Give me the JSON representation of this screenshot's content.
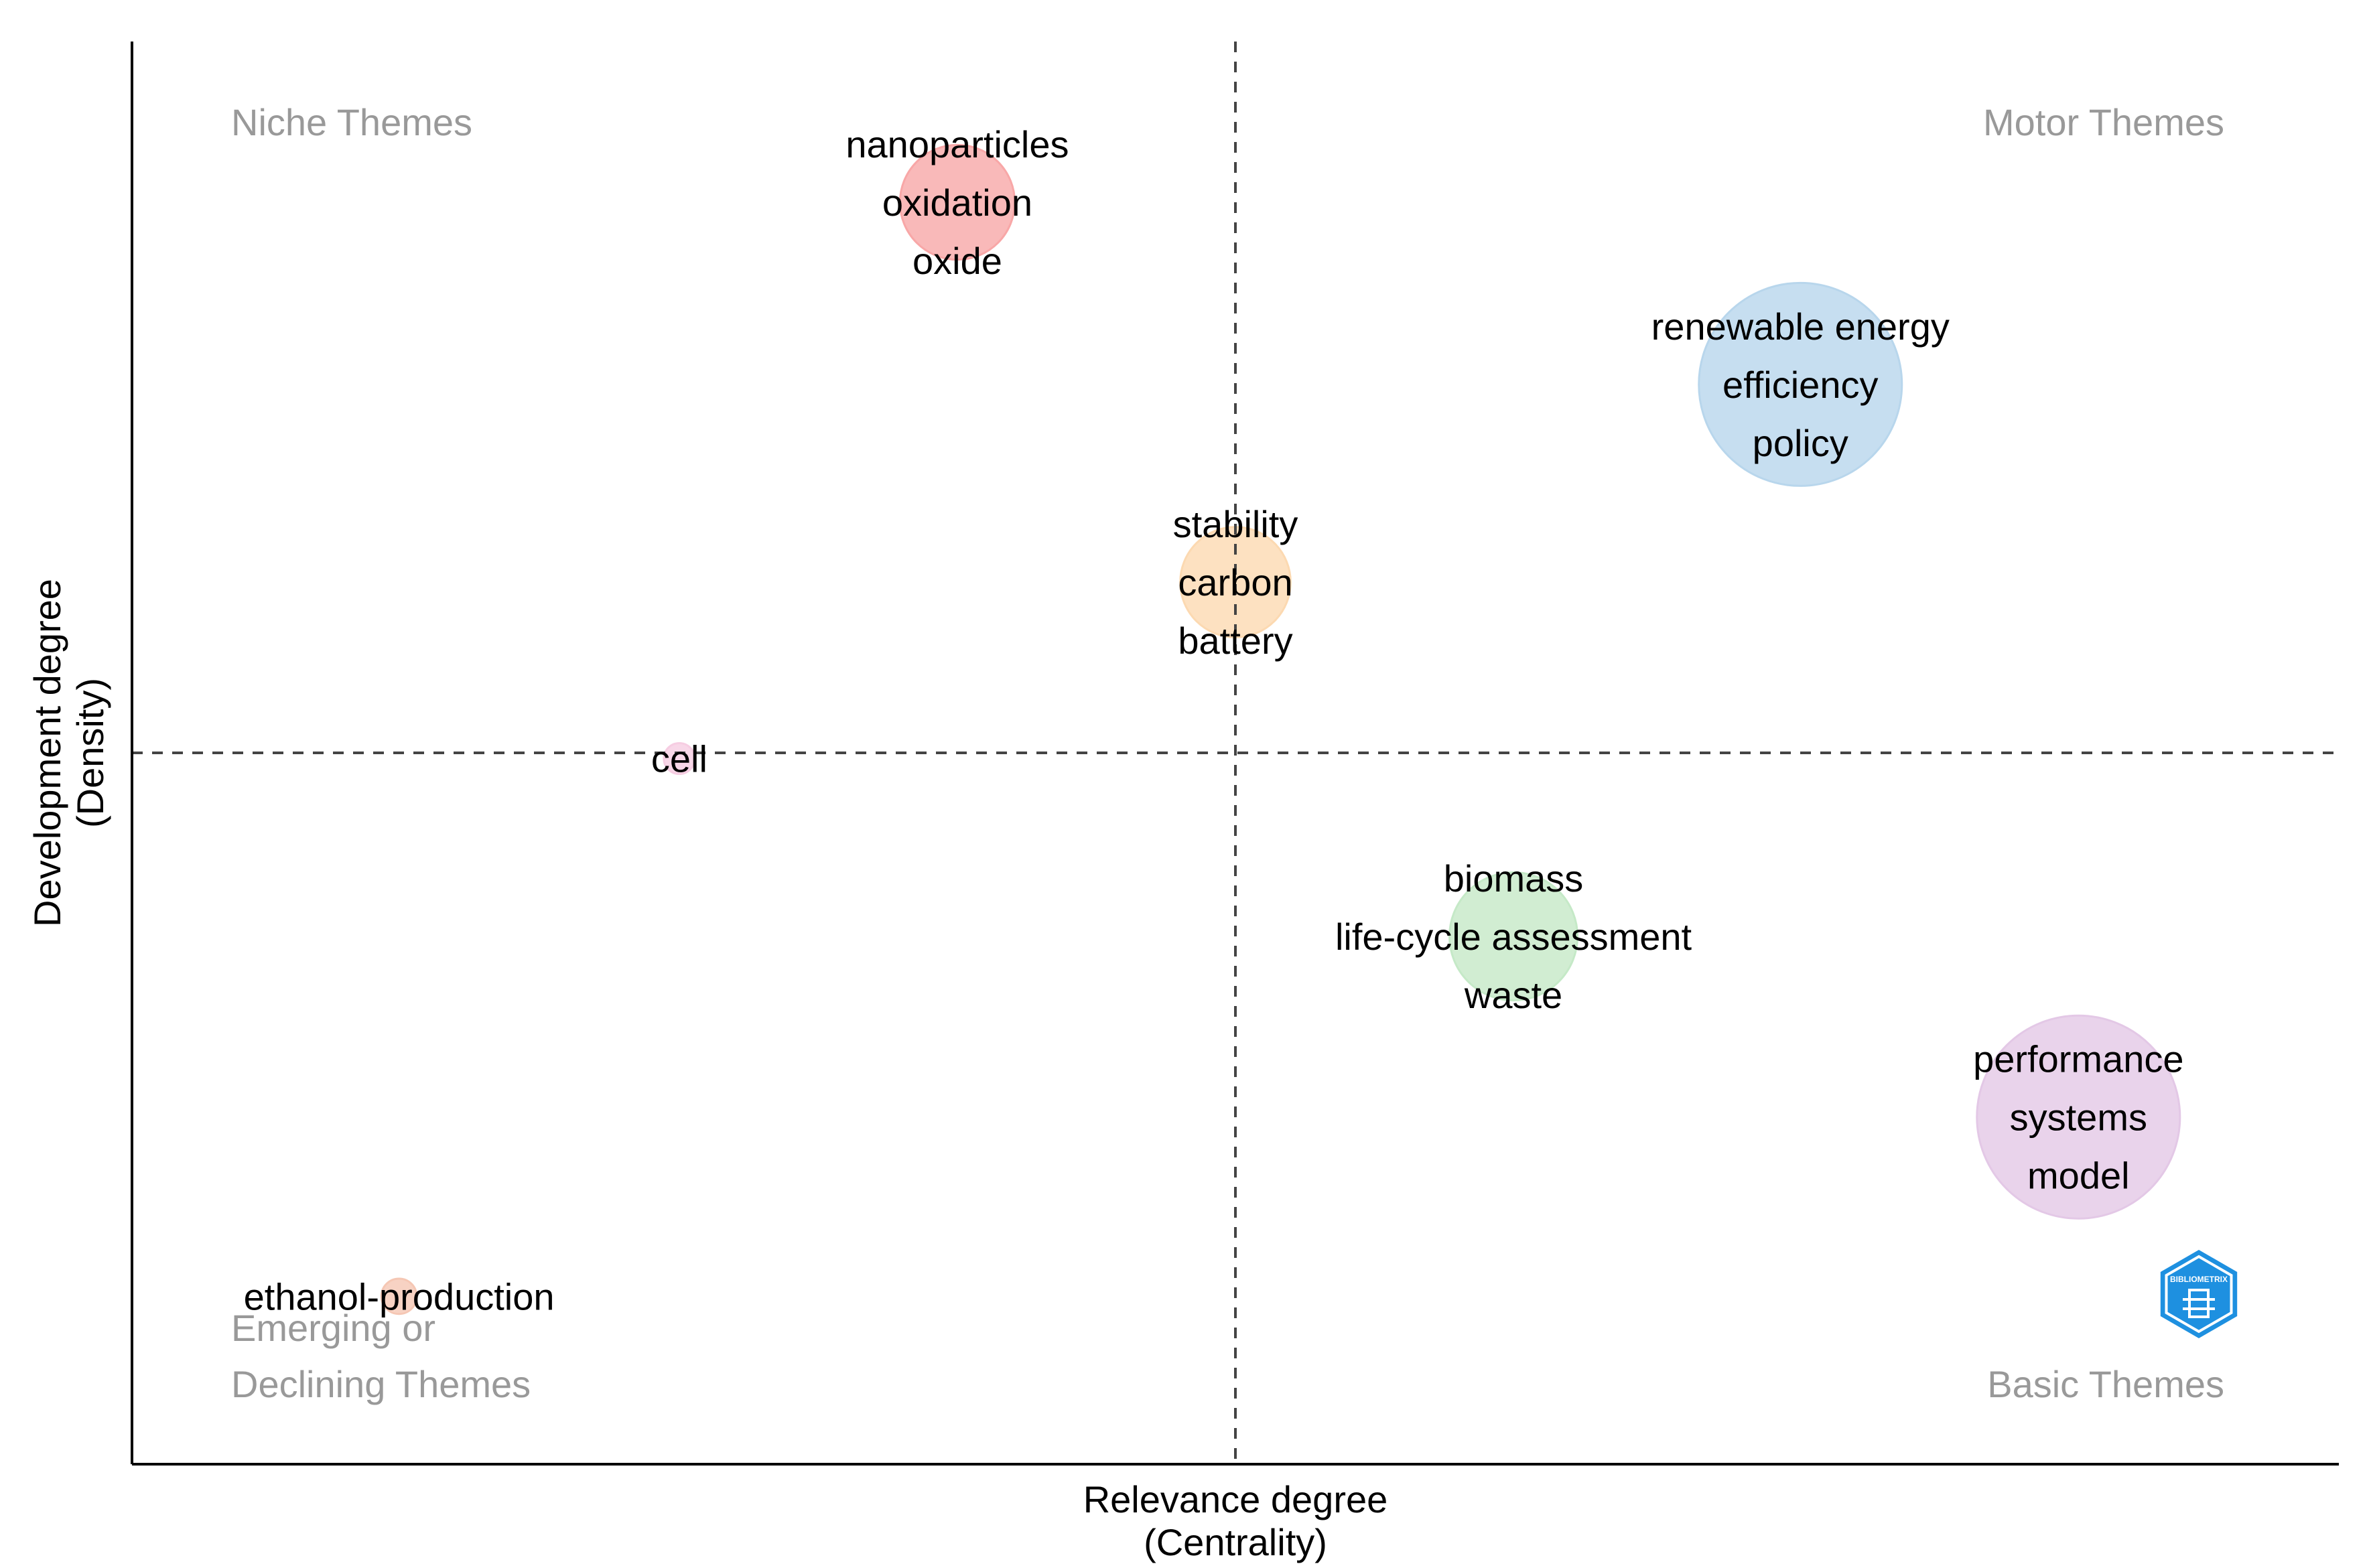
{
  "chart_data": {
    "type": "scatter",
    "subtype": "bubble",
    "xlabel": [
      "Relevance degree",
      "(Centrality)"
    ],
    "ylabel": [
      "Development degree",
      "(Density)"
    ],
    "xlim": [
      0,
      100
    ],
    "ylim": [
      0,
      100
    ],
    "x_center": 50,
    "y_center": 50,
    "grid": false,
    "quadrants": {
      "top_left": [
        "Niche Themes"
      ],
      "top_right": [
        "Motor Themes"
      ],
      "bottom_left": [
        "Emerging or",
        "Declining Themes"
      ],
      "bottom_right": [
        "Basic Themes"
      ]
    },
    "clusters": [
      {
        "name": "nanoparticles",
        "terms": [
          "nanoparticles",
          "oxidation",
          "oxide"
        ],
        "x": 37.4,
        "y": 88.7,
        "size": 2.6,
        "color": "#F8A7A7"
      },
      {
        "name": "renewable energy",
        "terms": [
          "renewable energy",
          "efficiency",
          "policy"
        ],
        "x": 75.6,
        "y": 75.9,
        "size": 4.6,
        "color": "#B8D6EC"
      },
      {
        "name": "stability",
        "terms": [
          "stability",
          "carbon",
          "battery"
        ],
        "x": 50.0,
        "y": 62.0,
        "size": 2.5,
        "color": "#FCD9B1"
      },
      {
        "name": "cell",
        "terms": [
          "cell"
        ],
        "x": 24.8,
        "y": 49.6,
        "size": 0.7,
        "color": "#F6CDE2"
      },
      {
        "name": "biomass",
        "terms": [
          "biomass",
          "life-cycle assessment",
          "waste"
        ],
        "x": 62.6,
        "y": 37.1,
        "size": 2.9,
        "color": "#C5E9C7"
      },
      {
        "name": "performance",
        "terms": [
          "performance",
          "systems",
          "model"
        ],
        "x": 88.2,
        "y": 24.4,
        "size": 4.6,
        "color": "#E3C8E6"
      },
      {
        "name": "ethanol-production",
        "terms": [
          "ethanol-production"
        ],
        "x": 12.1,
        "y": 11.8,
        "size": 0.8,
        "color": "#F5C7B4"
      }
    ]
  },
  "logo": {
    "name": "bibliometrix",
    "text": "BIBLIOMETRIX",
    "color": "#1E90E0"
  }
}
